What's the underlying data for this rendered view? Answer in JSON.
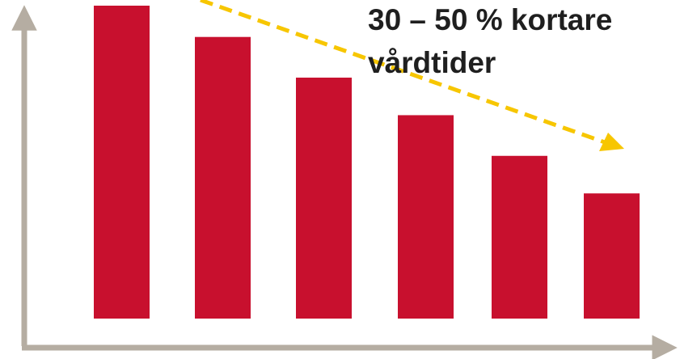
{
  "chart_data": {
    "type": "bar",
    "categories": [
      "",
      "",
      "",
      "",
      "",
      ""
    ],
    "values": [
      100,
      90,
      77,
      65,
      52,
      40
    ],
    "ylim": [
      0,
      100
    ],
    "title": "",
    "xlabel": "",
    "ylabel": "",
    "grid": false,
    "legend": "none",
    "annotation": {
      "line1": "30 – 50 % kortare",
      "line2": "vårdtider"
    }
  },
  "colors": {
    "bar": "#c8102e",
    "axis": "#b5ada2",
    "trend_arrow": "#f7c600",
    "text": "#1f1f1f"
  }
}
